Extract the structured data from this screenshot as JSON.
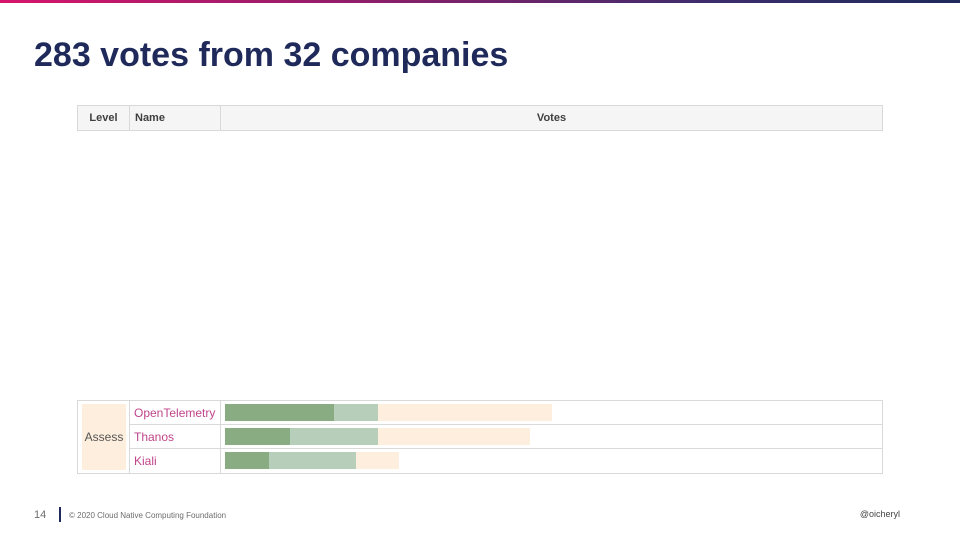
{
  "slide": {
    "title": "283 votes from 32 companies",
    "page_number": "14",
    "copyright": "© 2020 Cloud Native Computing Foundation",
    "handle": "@oicheryl"
  },
  "colors": {
    "accent_top_bar_start": "#d6156c",
    "accent_top_bar_end": "#1f2a5a",
    "title": "#1f2a5a",
    "name_text": "#c0458a",
    "level_fill": "#fdeedd",
    "series": [
      "#8aac83",
      "#b7cfba",
      "#fdeedd"
    ]
  },
  "table": {
    "headers": {
      "level": "Level",
      "name": "Name",
      "votes": "Votes"
    },
    "level_label": "Assess"
  },
  "chart_data": {
    "type": "bar",
    "orientation": "horizontal",
    "stacked": true,
    "title": "283 votes from 32 companies",
    "categories": [
      "OpenTelemetry",
      "Thanos",
      "Kiali"
    ],
    "group_label": "Assess",
    "series": [
      {
        "values": [
          25,
          15,
          10
        ]
      },
      {
        "values": [
          10,
          20,
          20
        ]
      },
      {
        "values": [
          40,
          35,
          10
        ]
      }
    ]
  }
}
